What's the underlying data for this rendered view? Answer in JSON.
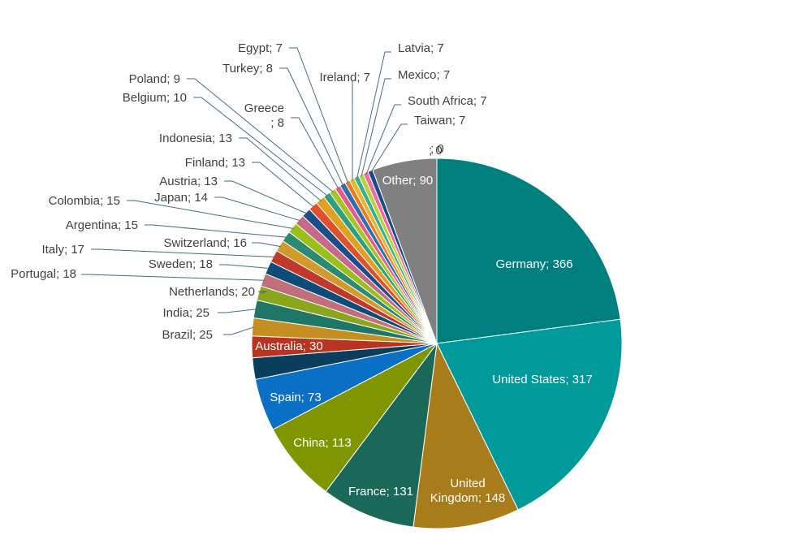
{
  "chart_data": {
    "type": "pie",
    "title": "",
    "slices": [
      {
        "label": "Germany",
        "value": 366,
        "color": "#007f7f",
        "text": "Germany; 366"
      },
      {
        "label": "United States",
        "value": 317,
        "color": "#009a9a",
        "text": "United States; 317"
      },
      {
        "label": "United Kingdom",
        "value": 148,
        "color": "#a87c1a",
        "text": "United Kingdom; 148"
      },
      {
        "label": "France",
        "value": 131,
        "color": "#1a6857",
        "text": "France; 131"
      },
      {
        "label": "China",
        "value": 113,
        "color": "#7f9600",
        "text": "China; 113"
      },
      {
        "label": "Spain",
        "value": 73,
        "color": "#0a70c5",
        "text": "Spain; 73"
      },
      {
        "label": "",
        "value": 30,
        "color": "#0b3d5c",
        "text": ""
      },
      {
        "label": "Australia",
        "value": 30,
        "color": "#b83322",
        "text": "Australia; 30"
      },
      {
        "label": "Brazil",
        "value": 25,
        "color": "#c48f20",
        "text": "Brazil; 25"
      },
      {
        "label": "India",
        "value": 25,
        "color": "#1f7566",
        "text": "India; 25"
      },
      {
        "label": "Netherlands",
        "value": 20,
        "color": "#8aa61c",
        "text": "Netherlands; 20"
      },
      {
        "label": "Portugal",
        "value": 18,
        "color": "#c0707a",
        "text": "Portugal; 18"
      },
      {
        "label": "Sweden",
        "value": 18,
        "color": "#0b4c78",
        "text": "Sweden; 18"
      },
      {
        "label": "Italy",
        "value": 17,
        "color": "#c0392b",
        "text": "Italy; 17"
      },
      {
        "label": "Switzerland",
        "value": 16,
        "color": "#d29a2a",
        "text": "Switzerland; 16"
      },
      {
        "label": "Argentina",
        "value": 15,
        "color": "#2c8a72",
        "text": "Argentina; 15"
      },
      {
        "label": "Colombia",
        "value": 15,
        "color": "#9bbf1a",
        "text": "Colombia; 15"
      },
      {
        "label": "Japan",
        "value": 14,
        "color": "#c76a8a",
        "text": "Japan; 14"
      },
      {
        "label": "Austria",
        "value": 13,
        "color": "#1b4f8a",
        "text": "Austria; 13"
      },
      {
        "label": "Finland",
        "value": 13,
        "color": "#e0502a",
        "text": "Finland; 13"
      },
      {
        "label": "Indonesia",
        "value": 13,
        "color": "#e0a020",
        "text": "Indonesia; 13"
      },
      {
        "label": "Belgium",
        "value": 10,
        "color": "#2ea080",
        "text": "Belgium; 10"
      },
      {
        "label": "Poland",
        "value": 9,
        "color": "#a6c61e",
        "text": "Poland; 9"
      },
      {
        "label": "Greece",
        "value": 8,
        "color": "#e85a8c",
        "text": "Greece ; 8"
      },
      {
        "label": "Turkey",
        "value": 8,
        "color": "#2a6fb0",
        "text": "Turkey; 8"
      },
      {
        "label": "Egypt",
        "value": 7,
        "color": "#f07a20",
        "text": "Egypt; 7"
      },
      {
        "label": "Ireland",
        "value": 7,
        "color": "#eab52a",
        "text": "Ireland; 7"
      },
      {
        "label": "Latvia",
        "value": 7,
        "color": "#35b08f",
        "text": "Latvia; 7"
      },
      {
        "label": "Mexico",
        "value": 7,
        "color": "#b8d23a",
        "text": "Mexico; 7"
      },
      {
        "label": "South Africa",
        "value": 7,
        "color": "#f06a9a",
        "text": "South Africa; 7"
      },
      {
        "label": "Taiwan",
        "value": 7,
        "color": "#1a4c8c",
        "text": "Taiwan; 7"
      },
      {
        "label": "",
        "value": 0,
        "color": "#555555",
        "text": "; 0"
      },
      {
        "label": "",
        "value": 0,
        "color": "#555555",
        "text": "; 0"
      },
      {
        "label": "Other",
        "value": 90,
        "color": "#808080",
        "text": "Other; 90"
      }
    ],
    "label_color_inside": "#ffffff",
    "label_color_outside": "#404040",
    "leader_line_color": "#4a6a7a"
  }
}
